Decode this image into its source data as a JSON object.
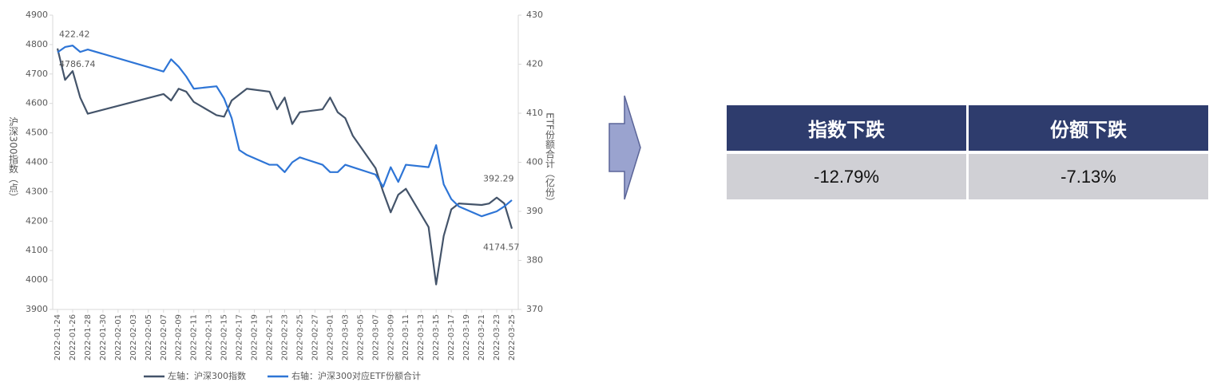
{
  "chart_data": {
    "type": "line",
    "x": [
      "2022-01-24",
      "2022-01-25",
      "2022-01-26",
      "2022-01-27",
      "2022-01-28",
      "2022-02-07",
      "2022-02-08",
      "2022-02-09",
      "2022-02-10",
      "2022-02-11",
      "2022-02-14",
      "2022-02-15",
      "2022-02-16",
      "2022-02-17",
      "2022-02-18",
      "2022-02-21",
      "2022-02-22",
      "2022-02-23",
      "2022-02-24",
      "2022-02-25",
      "2022-02-28",
      "2022-03-01",
      "2022-03-02",
      "2022-03-03",
      "2022-03-04",
      "2022-03-07",
      "2022-03-08",
      "2022-03-09",
      "2022-03-10",
      "2022-03-11",
      "2022-03-14",
      "2022-03-15",
      "2022-03-16",
      "2022-03-17",
      "2022-03-18",
      "2022-03-21",
      "2022-03-22",
      "2022-03-23",
      "2022-03-24",
      "2022-03-25"
    ],
    "xticks": [
      "2022-01-24",
      "2022-01-26",
      "2022-01-28",
      "2022-01-30",
      "2022-02-01",
      "2022-02-03",
      "2022-02-05",
      "2022-02-07",
      "2022-02-09",
      "2022-02-11",
      "2022-02-13",
      "2022-02-15",
      "2022-02-17",
      "2022-02-19",
      "2022-02-21",
      "2022-02-23",
      "2022-02-25",
      "2022-02-27",
      "2022-03-01",
      "2022-03-03",
      "2022-03-05",
      "2022-03-07",
      "2022-03-09",
      "2022-03-11",
      "2022-03-13",
      "2022-03-15",
      "2022-03-17",
      "2022-03-19",
      "2022-03-21",
      "2022-03-23",
      "2022-03-25"
    ],
    "y_label": "沪深300指数（点）",
    "y2_label": "ETF份额合计（亿份）",
    "ylim": [
      3900,
      4900
    ],
    "yticks": [
      3900,
      4000,
      4100,
      4200,
      4300,
      4400,
      4500,
      4600,
      4700,
      4800,
      4900
    ],
    "y2lim": [
      370,
      430
    ],
    "y2ticks": [
      370,
      380,
      390,
      400,
      410,
      420,
      430
    ],
    "series": [
      {
        "name": "左轴：沪深300指数",
        "color": "#44546a",
        "values": [
          4786.74,
          4680,
          4710,
          4620,
          4565,
          4632,
          4610,
          4650,
          4640,
          4605,
          4560,
          4555,
          4610,
          4630,
          4650,
          4640,
          4580,
          4620,
          4530,
          4570,
          4580,
          4620,
          4570,
          4550,
          4490,
          4380,
          4300,
          4230,
          4290,
          4310,
          4180,
          3985,
          4150,
          4240,
          4260,
          4255,
          4260,
          4280,
          4260,
          4174.57
        ]
      },
      {
        "name": "右轴：沪深300对应ETF份额合计",
        "color": "#2e75d6",
        "axis": "y2",
        "values": [
          422.42,
          423.5,
          423.8,
          422.5,
          423,
          418.5,
          421,
          419.5,
          417.5,
          415,
          415.5,
          413,
          409,
          402.5,
          401.5,
          399.5,
          399.5,
          398,
          400,
          401,
          399.5,
          398,
          398,
          399.5,
          399,
          397.5,
          395,
          399,
          396,
          399.5,
          399,
          403.5,
          395.5,
          392.5,
          391,
          389,
          389.5,
          390,
          391,
          392.29
        ]
      }
    ]
  },
  "table": {
    "header": [
      "指数下跌",
      "份额下跌"
    ],
    "rows": [
      [
        "-12.79%",
        "-7.13%"
      ]
    ]
  }
}
